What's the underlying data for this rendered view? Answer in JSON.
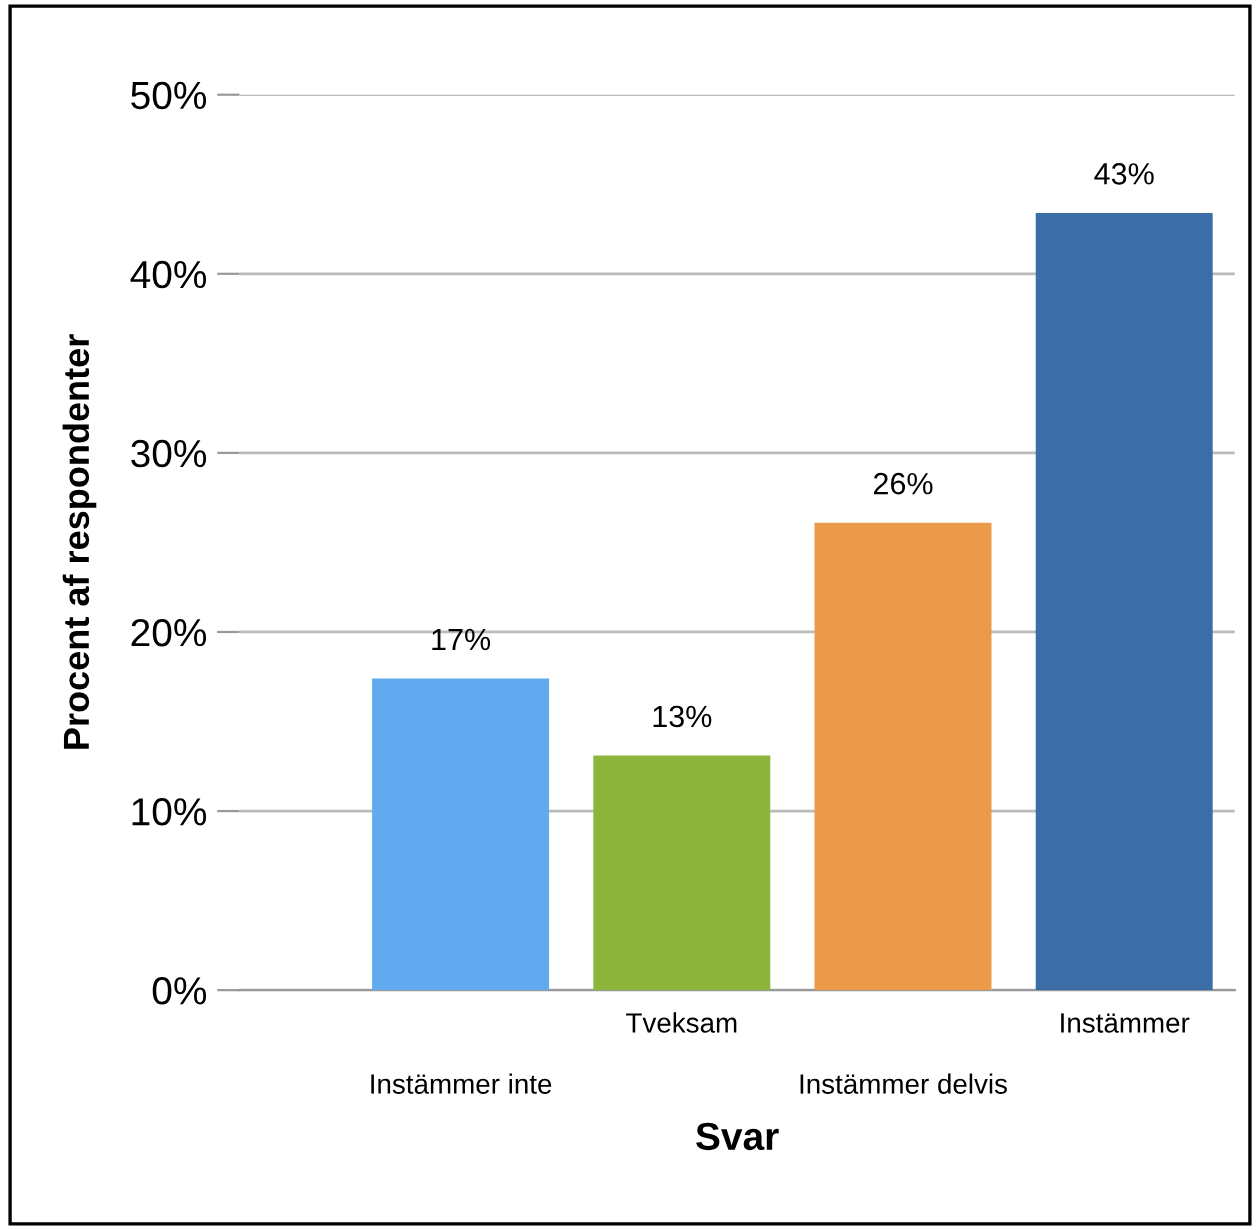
{
  "chart_data": {
    "type": "bar",
    "xlabel": "Svar",
    "ylabel": "Procent af respondenter",
    "categories": [
      "Instämmer inte",
      "Tveksam",
      "Instämmer delvis",
      "Instämmer"
    ],
    "values": [
      17.4,
      13.1,
      26.1,
      43.4
    ],
    "colors": [
      "#62aaf0",
      "#8db53c",
      "#ea9a48",
      "#3b6ea6"
    ],
    "value_labels": [
      "17%",
      "13%",
      "26%",
      "43%"
    ],
    "ylim": [
      0,
      50
    ],
    "yticks": [
      {
        "value": 0,
        "label": "0%"
      },
      {
        "value": 10,
        "label": "10%"
      },
      {
        "value": 20,
        "label": "20%"
      },
      {
        "value": 30,
        "label": "30%"
      },
      {
        "value": 40,
        "label": "40%"
      },
      {
        "value": 50,
        "label": "50%"
      }
    ],
    "grid": "y",
    "legend": false
  }
}
